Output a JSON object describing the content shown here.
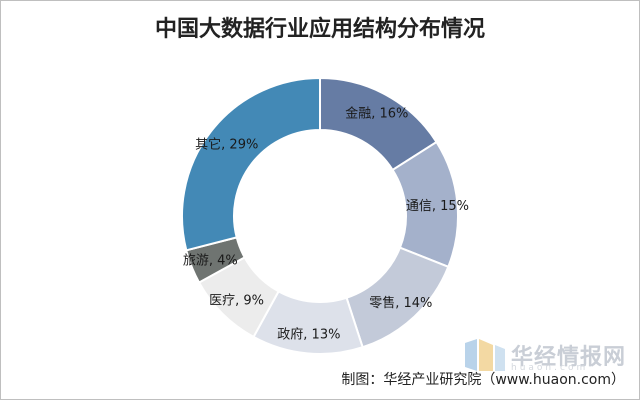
{
  "chart_data": {
    "type": "pie",
    "donut": true,
    "title": "中国大数据行业应用结构分布情况",
    "categories": [
      "金融",
      "通信",
      "零售",
      "政府",
      "医疗",
      "旅游",
      "其它"
    ],
    "values": [
      16,
      15,
      14,
      13,
      9,
      4,
      29
    ],
    "unit": "%",
    "labels": [
      "金融, 16%",
      "通信, 15%",
      "零售, 14%",
      "政府, 13%",
      "医疗, 9%",
      "旅游, 4%",
      "其它, 29%"
    ],
    "colors": [
      "#667ca4",
      "#a4b1cb",
      "#c3cad9",
      "#dde1ea",
      "#ececec",
      "#6f7471",
      "#4389b6"
    ],
    "legend": "none"
  },
  "footer": {
    "source": "制图：华经产业研究院（www.huaon.com）"
  },
  "watermark": {
    "brand": "华经情报网",
    "domain": "huaon.com"
  }
}
